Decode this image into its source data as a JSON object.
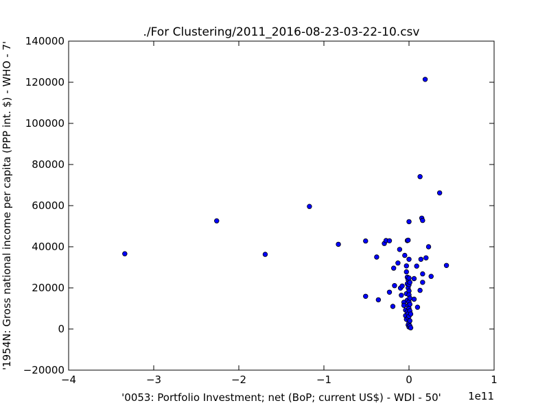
{
  "chart_data": {
    "type": "scatter",
    "title": "./For Clustering/2011_2016-08-23-03-22-10.csv",
    "xlabel": "'0053: Portfolio Investment; net  (BoP; current US$) - WDI - 50'",
    "ylabel": "'1954N: Gross national income per capita (PPP int. $) - WHO - 7'",
    "x_multiplier_label": "1e11",
    "x_scale": 100000000000,
    "xlim": [
      -4,
      1
    ],
    "ylim": [
      -20000,
      140000
    ],
    "xticks": [
      -4,
      -3,
      -2,
      -1,
      0,
      1
    ],
    "xtick_labels": [
      "−4",
      "−3",
      "−2",
      "−1",
      "0",
      "1"
    ],
    "yticks": [
      -20000,
      0,
      20000,
      40000,
      60000,
      80000,
      100000,
      120000,
      140000
    ],
    "ytick_labels": [
      "−20000",
      "0",
      "20000",
      "40000",
      "60000",
      "80000",
      "100000",
      "120000",
      "140000"
    ],
    "grid": false,
    "marker_color": "#0000ff",
    "marker_edge": "#000000",
    "points": [
      [
        -3.34,
        36600
      ],
      [
        -2.26,
        52600
      ],
      [
        -1.69,
        36300
      ],
      [
        -1.17,
        59600
      ],
      [
        -0.83,
        41200
      ],
      [
        -0.51,
        42800
      ],
      [
        -0.51,
        15900
      ],
      [
        -0.38,
        35000
      ],
      [
        -0.36,
        14200
      ],
      [
        -0.29,
        41600
      ],
      [
        -0.27,
        43000
      ],
      [
        -0.23,
        42900
      ],
      [
        -0.23,
        17900
      ],
      [
        -0.19,
        11000
      ],
      [
        -0.18,
        29600
      ],
      [
        -0.17,
        21100
      ],
      [
        -0.13,
        32100
      ],
      [
        -0.11,
        38700
      ],
      [
        -0.1,
        19900
      ],
      [
        -0.09,
        16400
      ],
      [
        -0.08,
        20900
      ],
      [
        -0.06,
        13000
      ],
      [
        -0.06,
        11500
      ],
      [
        -0.05,
        35800
      ],
      [
        -0.04,
        9200
      ],
      [
        -0.04,
        6500
      ],
      [
        -0.03,
        30700
      ],
      [
        -0.03,
        27800
      ],
      [
        -0.03,
        17200
      ],
      [
        -0.03,
        4700
      ],
      [
        -0.02,
        43000
      ],
      [
        -0.02,
        25200
      ],
      [
        -0.02,
        22000
      ],
      [
        -0.02,
        14000
      ],
      [
        -0.02,
        8400
      ],
      [
        -0.01,
        43200
      ],
      [
        -0.01,
        24000
      ],
      [
        -0.01,
        20000
      ],
      [
        -0.01,
        11400
      ],
      [
        -0.01,
        7400
      ],
      [
        -0.01,
        5400
      ],
      [
        -0.01,
        2000
      ],
      [
        0.0,
        52200
      ],
      [
        0.0,
        33900
      ],
      [
        0.0,
        24800
      ],
      [
        0.0,
        21500
      ],
      [
        0.0,
        18500
      ],
      [
        0.0,
        16600
      ],
      [
        0.0,
        13200
      ],
      [
        0.0,
        10000
      ],
      [
        0.0,
        6200
      ],
      [
        0.0,
        3200
      ],
      [
        0.0,
        1000
      ],
      [
        0.01,
        22700
      ],
      [
        0.01,
        15000
      ],
      [
        0.01,
        12000
      ],
      [
        0.01,
        8800
      ],
      [
        0.01,
        4000
      ],
      [
        0.01,
        1500
      ],
      [
        0.02,
        600
      ],
      [
        0.02,
        7300
      ],
      [
        0.06,
        24500
      ],
      [
        0.06,
        14500
      ],
      [
        0.09,
        30600
      ],
      [
        0.1,
        10600
      ],
      [
        0.13,
        18800
      ],
      [
        0.13,
        74100
      ],
      [
        0.14,
        33900
      ],
      [
        0.15,
        53900
      ],
      [
        0.16,
        52800
      ],
      [
        0.16,
        26800
      ],
      [
        0.16,
        22700
      ],
      [
        0.19,
        121400
      ],
      [
        0.2,
        34600
      ],
      [
        0.23,
        40000
      ],
      [
        0.26,
        25600
      ],
      [
        0.36,
        66200
      ],
      [
        0.44,
        30900
      ]
    ]
  }
}
